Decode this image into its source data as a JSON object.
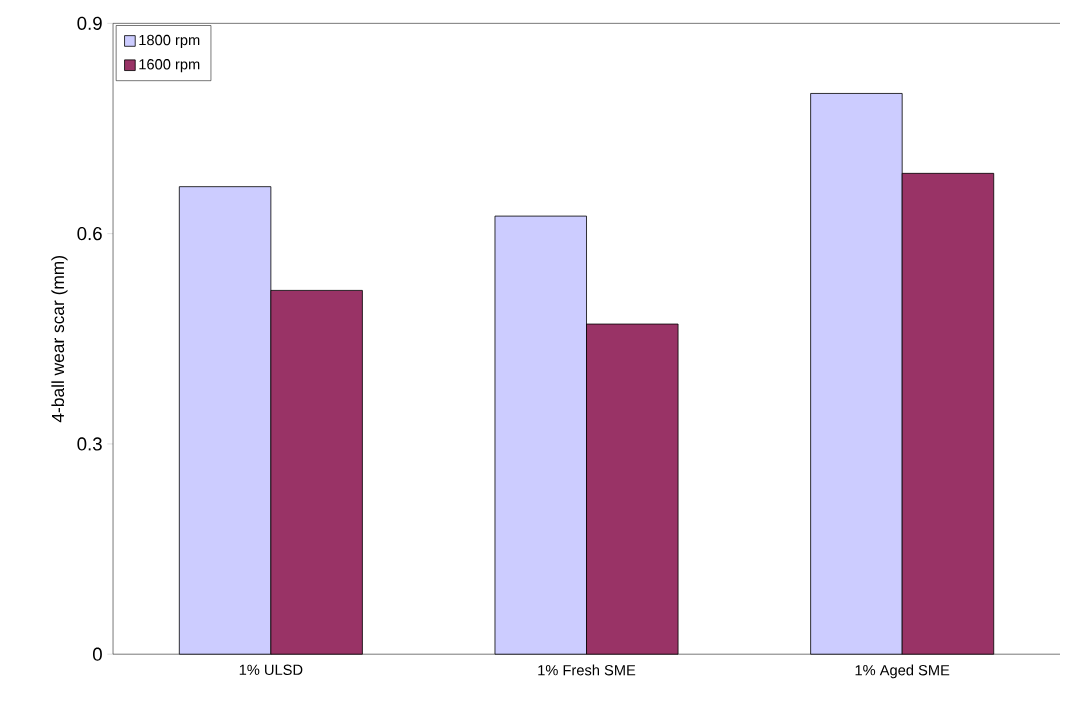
{
  "chart_data": {
    "type": "bar",
    "ylabel": "4-ball wear scar (mm)",
    "categories": [
      "1% ULSD",
      "1% Fresh SME",
      "1% Aged SME"
    ],
    "series": [
      {
        "name": "1800 rpm",
        "color": "#ccccff",
        "values": [
          0.667,
          0.625,
          0.8
        ]
      },
      {
        "name": "1600 rpm",
        "color": "#993366",
        "values": [
          0.519,
          0.471,
          0.686
        ]
      }
    ],
    "ylim": [
      0,
      0.9
    ],
    "yticks": [
      0,
      0.3,
      0.6,
      0.9
    ],
    "legend": "top left",
    "grid": false
  }
}
